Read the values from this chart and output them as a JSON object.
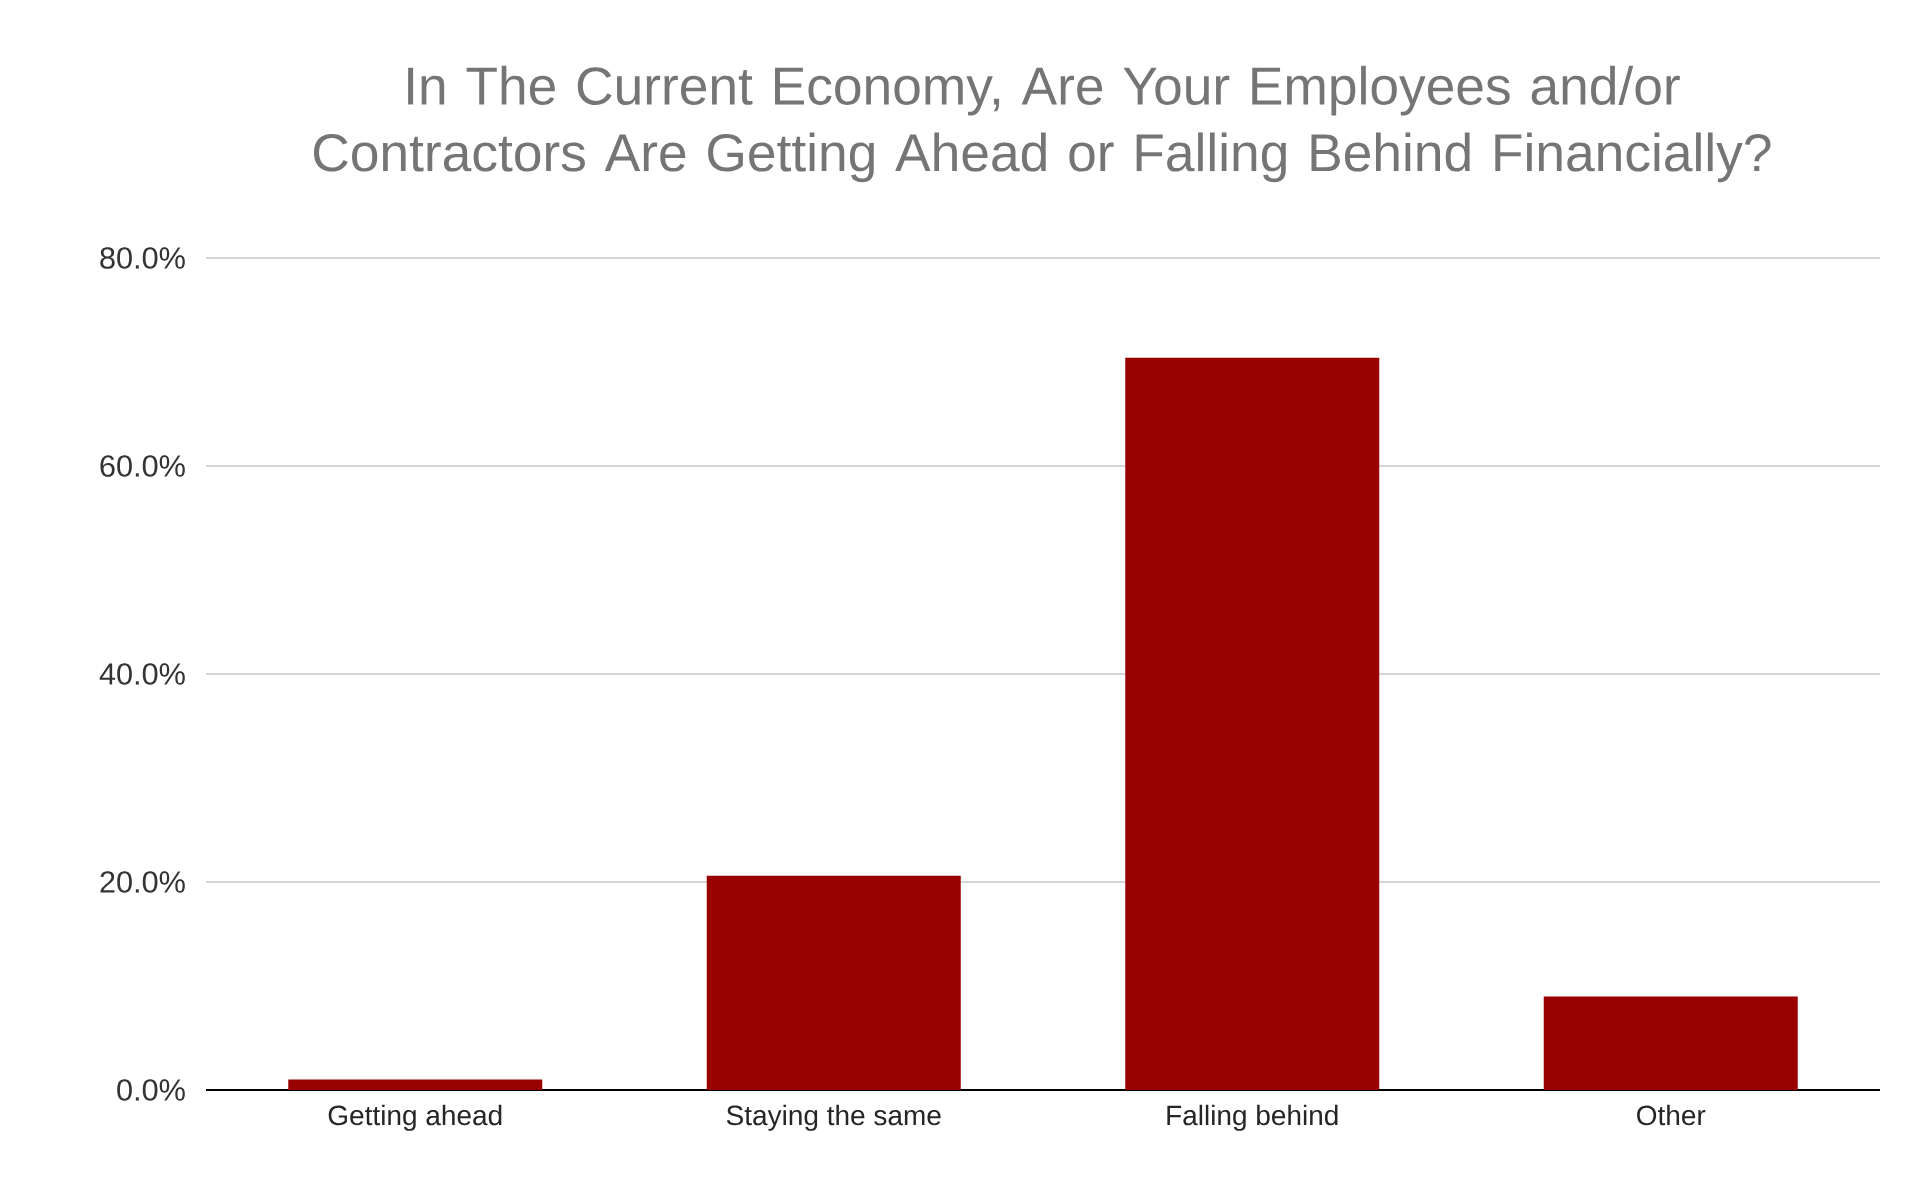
{
  "chart_data": {
    "type": "bar",
    "title": "In The Current Economy, Are Your Employees and/or Contractors Are Getting Ahead or Falling Behind Financially?",
    "categories": [
      "Getting ahead",
      "Staying the same",
      "Falling behind",
      "Other"
    ],
    "values": [
      1.0,
      20.6,
      70.4,
      9.0
    ],
    "color": "#990000",
    "ylim": [
      0,
      80
    ],
    "yticks": [
      {
        "value": 0,
        "label": "0.0%"
      },
      {
        "value": 20,
        "label": "20.0%"
      },
      {
        "value": 40,
        "label": "40.0%"
      },
      {
        "value": 60,
        "label": "60.0%"
      },
      {
        "value": 80,
        "label": "80.0%"
      }
    ],
    "grid": "y"
  }
}
